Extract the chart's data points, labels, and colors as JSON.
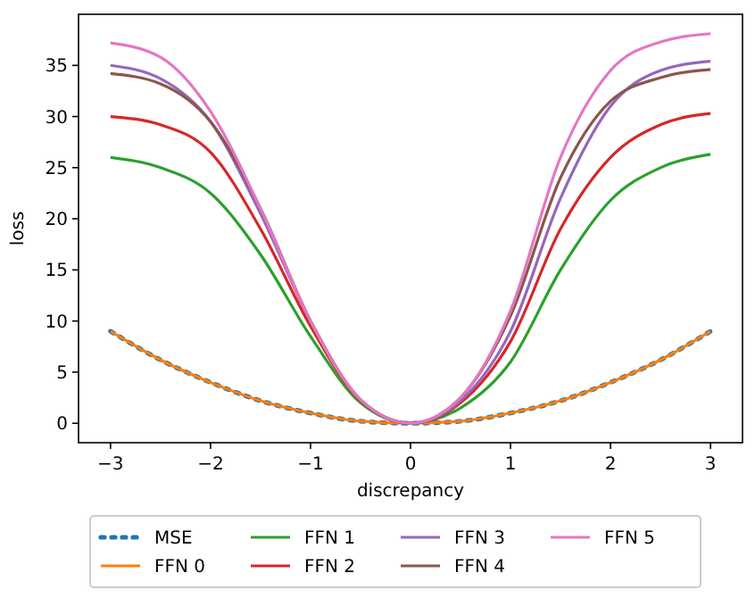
{
  "chart_data": {
    "type": "line",
    "xlabel": "discrepancy",
    "ylabel": "loss",
    "x": [
      -3,
      -2.5,
      -2,
      -1.5,
      -1,
      -0.5,
      0,
      0.5,
      1,
      1.5,
      2,
      2.5,
      3
    ],
    "xlim": [
      -3.32,
      3.32
    ],
    "ylim": [
      -1.9,
      40
    ],
    "xticks": [
      {
        "value": -3,
        "label": "−3"
      },
      {
        "value": -2,
        "label": "−2"
      },
      {
        "value": -1,
        "label": "−1"
      },
      0,
      1,
      2,
      3
    ],
    "yticks": [
      0,
      5,
      10,
      15,
      20,
      25,
      30,
      35
    ],
    "grid": false,
    "legend": "bottom",
    "series": [
      {
        "name": "MSE",
        "color": "#1f77b4",
        "line_style": "dotted",
        "values": [
          9,
          6.2,
          4,
          2.2,
          1,
          0.2,
          0,
          0.2,
          1,
          2.2,
          4,
          6.2,
          9
        ]
      },
      {
        "name": "FFN 0",
        "color": "#ff7f0e",
        "line_style": "solid",
        "values": [
          9,
          6.2,
          4,
          2.2,
          1,
          0.2,
          0,
          0.2,
          1,
          2.2,
          4,
          6.2,
          9
        ]
      },
      {
        "name": "FFN 1",
        "color": "#2ca02c",
        "line_style": "solid",
        "values": [
          26,
          25,
          22.5,
          16.5,
          8.5,
          2,
          0,
          1.5,
          6,
          15,
          21.8,
          25,
          26.3
        ]
      },
      {
        "name": "FFN 2",
        "color": "#d62728",
        "line_style": "solid",
        "values": [
          30,
          29.2,
          26.5,
          19,
          9.5,
          2.2,
          0,
          2,
          8,
          19,
          26,
          29.2,
          30.3
        ]
      },
      {
        "name": "FFN 3",
        "color": "#9467bd",
        "line_style": "solid",
        "values": [
          35,
          33.7,
          29.5,
          20.5,
          10,
          2.3,
          0,
          2.2,
          9,
          22,
          31,
          34.5,
          35.4
        ]
      },
      {
        "name": "FFN 4",
        "color": "#8c564b",
        "line_style": "solid",
        "values": [
          34.2,
          33.2,
          29.5,
          21,
          10,
          2.3,
          0,
          2.5,
          10.5,
          24,
          31.5,
          33.8,
          34.6
        ]
      },
      {
        "name": "FFN 5",
        "color": "#e377c2",
        "line_style": "solid",
        "values": [
          37.2,
          35.8,
          30.5,
          21,
          10,
          2.3,
          0,
          2.5,
          11,
          26,
          34.5,
          37.3,
          38.1
        ]
      }
    ]
  }
}
